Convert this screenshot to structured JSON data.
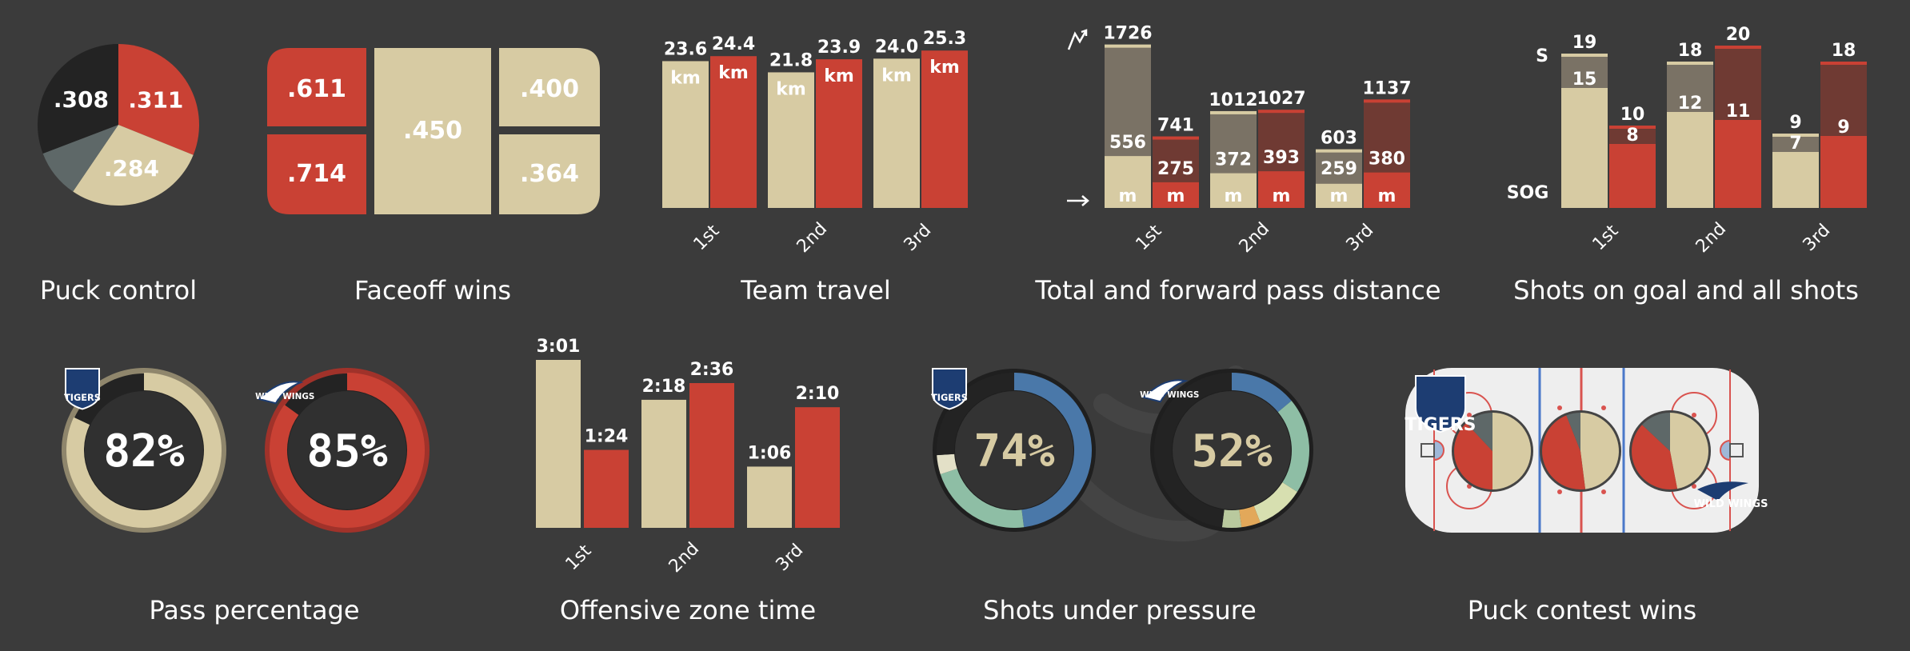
{
  "colors": {
    "background": "#3b3b3b",
    "tigers": "#d7cba3",
    "wildwings": "#c94134",
    "dark": "#232323",
    "grey": "#5e6868",
    "shot_tigers": "#7a7265",
    "shot_wings": "#6f3a33",
    "blue": "#4a78a9",
    "teal": "#8ebea5"
  },
  "chart_data": [
    {
      "type": "pie",
      "title": "Puck control",
      "slices": [
        {
          "label": ".311",
          "value": 0.311,
          "color": "#c94134"
        },
        {
          "label": ".284",
          "value": 0.284,
          "color": "#d7cba3"
        },
        {
          "label": "",
          "value": 0.097,
          "color": "#5e6868"
        },
        {
          "label": ".308",
          "value": 0.308,
          "color": "#232323"
        }
      ]
    },
    {
      "type": "treemap",
      "title": "Faceoff wins",
      "cells": [
        ".611",
        ".714",
        ".450",
        ".400",
        ".364"
      ]
    },
    {
      "type": "bar",
      "title": "Team travel",
      "categories": [
        "1st",
        "2nd",
        "3rd"
      ],
      "series": [
        {
          "team": "tigers",
          "values": [
            23.6,
            21.8,
            24.0
          ],
          "labels": [
            "23.6",
            "21.8",
            "24.0"
          ]
        },
        {
          "team": "wildwings",
          "values": [
            24.4,
            23.9,
            25.3
          ],
          "labels": [
            "24.4",
            "23.9",
            "25.3"
          ]
        }
      ],
      "unit": "km",
      "ylim": [
        0,
        27
      ]
    },
    {
      "type": "bar",
      "title": "Total and forward pass distance",
      "categories": [
        "1st",
        "2nd",
        "3rd"
      ],
      "total": {
        "tigers": [
          1726,
          1012,
          603
        ],
        "wildwings": [
          741,
          1027,
          1137
        ]
      },
      "forward": {
        "tigers": [
          556,
          372,
          259
        ],
        "wildwings": [
          275,
          393,
          380
        ]
      },
      "unit": "m",
      "ylim": [
        0,
        1800
      ]
    },
    {
      "type": "bar",
      "title": "Shots on goal and all shots",
      "categories": [
        "1st",
        "2nd",
        "3rd"
      ],
      "shots": {
        "tigers": [
          19,
          18,
          9
        ],
        "wildwings": [
          10,
          20,
          18
        ]
      },
      "sog": {
        "tigers": [
          15,
          12,
          7
        ],
        "wildwings": [
          8,
          11,
          9
        ]
      },
      "legend": {
        "shots": "S",
        "sog": "SOG"
      },
      "ylim": [
        0,
        21
      ]
    },
    {
      "type": "donut",
      "title": "Pass percentage",
      "items": [
        {
          "team": "tigers",
          "logo": "TIGERS",
          "value": 0.82,
          "label": "82%"
        },
        {
          "team": "wildwings",
          "logo": "WILD WINGS",
          "value": 0.85,
          "label": "85%"
        }
      ]
    },
    {
      "type": "bar",
      "title": "Offensive zone time",
      "categories": [
        "1st",
        "2nd",
        "3rd"
      ],
      "series": [
        {
          "team": "tigers",
          "values": [
            181,
            138,
            66
          ],
          "labels": [
            "3:01",
            "2:18",
            "1:06"
          ]
        },
        {
          "team": "wildwings",
          "values": [
            84,
            156,
            130
          ],
          "labels": [
            "1:24",
            "2:36",
            "2:10"
          ]
        }
      ],
      "ylim": [
        0,
        181
      ]
    },
    {
      "type": "donut",
      "title": "Shots under pressure",
      "items": [
        {
          "team": "tigers",
          "logo": "TIGERS",
          "label": "74%",
          "segments": [
            {
              "value": 0.48,
              "color": "#4a78a9"
            },
            {
              "value": 0.22,
              "color": "#8ebea5"
            },
            {
              "value": 0.04,
              "color": "#e3e0c7"
            },
            {
              "value": 0.26,
              "color": "#232323"
            }
          ]
        },
        {
          "team": "wildwings",
          "logo": "WILD WINGS",
          "label": "52%",
          "segments": [
            {
              "value": 0.14,
              "color": "#4a78a9"
            },
            {
              "value": 0.2,
              "color": "#8ebea5"
            },
            {
              "value": 0.1,
              "color": "#d7dfb0"
            },
            {
              "value": 0.04,
              "color": "#e2a85a"
            },
            {
              "value": 0.04,
              "color": "#b9c99e"
            },
            {
              "value": 0.48,
              "color": "#232323"
            }
          ]
        }
      ]
    },
    {
      "type": "pie",
      "title": "Puck contest wins",
      "logos": [
        "TIGERS",
        "WILD WINGS"
      ],
      "pies": [
        {
          "tigers": 0.5,
          "wildwings": 0.38,
          "other": 0.12
        },
        {
          "tigers": 0.48,
          "wildwings": 0.46,
          "other": 0.06
        },
        {
          "tigers": 0.47,
          "wildwings": 0.4,
          "other": 0.13
        }
      ]
    }
  ]
}
